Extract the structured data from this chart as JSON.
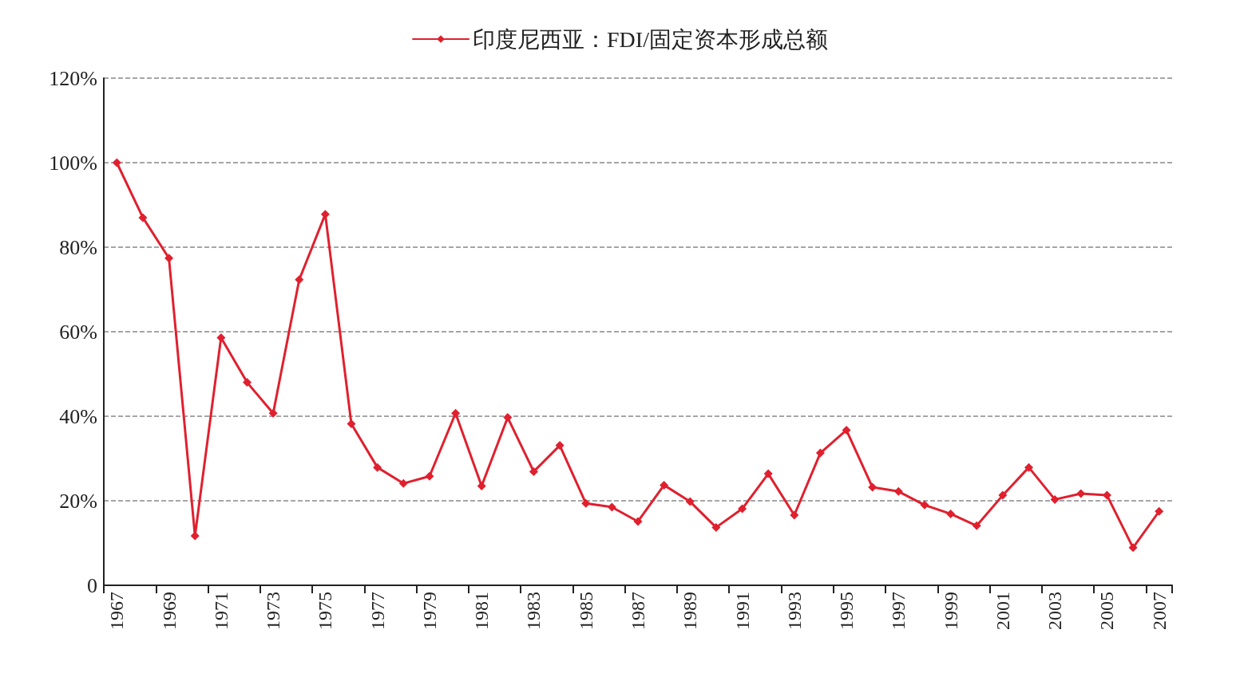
{
  "chart_data": {
    "type": "line",
    "categories": [
      "1967",
      null,
      "1969",
      null,
      "1971",
      null,
      "1973",
      null,
      "1975",
      null,
      "1977",
      null,
      "1979",
      null,
      "1981",
      null,
      "1983",
      null,
      "1985",
      null,
      "1987",
      null,
      "1989",
      null,
      "1991",
      null,
      "1993",
      null,
      "1995",
      null,
      "1997",
      null,
      "1999",
      null,
      "2001",
      null,
      "2003",
      null,
      "2005",
      null,
      "2007"
    ],
    "series": [
      {
        "name": "印度尼西亚：FDI/固定资本形成总额",
        "color": "#e0202e",
        "values": [
          100,
          87,
          77.4,
          11.7,
          58.6,
          48,
          40.7,
          72.3,
          87.8,
          38.2,
          27.9,
          24.1,
          25.8,
          40.7,
          23.5,
          39.7,
          26.9,
          33.1,
          19.4,
          18.5,
          15.1,
          23.7,
          19.8,
          13.7,
          18.1,
          26.4,
          16.6,
          31.3,
          36.7,
          23.2,
          22.2,
          19,
          16.9,
          14.1,
          21.3,
          27.9,
          20.3,
          21.7,
          21.3,
          8.9,
          17.5
        ]
      }
    ],
    "ylim": [
      0,
      120
    ],
    "yticks": [
      {
        "value": 0,
        "label": "0"
      },
      {
        "value": 20,
        "label": "20%"
      },
      {
        "value": 40,
        "label": "40%"
      },
      {
        "value": 60,
        "label": "60%"
      },
      {
        "value": 80,
        "label": "80%"
      },
      {
        "value": 100,
        "label": "100%"
      },
      {
        "value": 120,
        "label": "120%"
      }
    ],
    "grid": "y",
    "legend": "top",
    "marker": "diamond",
    "line_style": "solid"
  }
}
